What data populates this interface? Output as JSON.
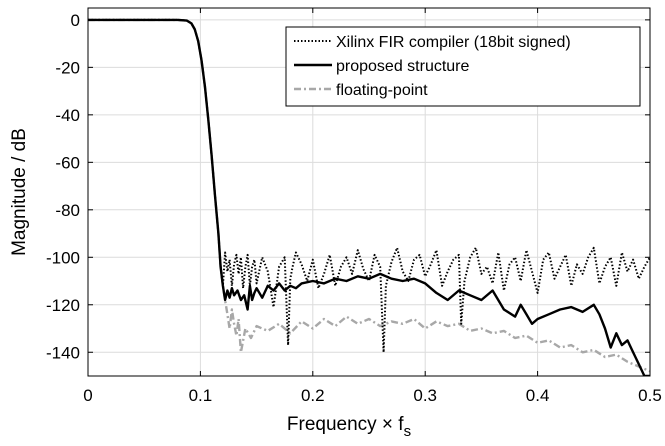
{
  "chart_data": {
    "type": "line",
    "xlabel": "Frequency × f",
    "xlabel_subscript": "s",
    "ylabel": "Magnitude / dB",
    "xlim": [
      0,
      0.5
    ],
    "ylim": [
      -150,
      5
    ],
    "xticks": [
      0,
      0.1,
      0.2,
      0.3,
      0.4,
      0.5
    ],
    "xtick_labels": [
      "0",
      "0.1",
      "0.2",
      "0.3",
      "0.4",
      "0.5"
    ],
    "yticks": [
      0,
      -20,
      -40,
      -60,
      -80,
      -100,
      -120,
      -140
    ],
    "ytick_labels": [
      "0",
      "-20",
      "-40",
      "-60",
      "-80",
      "-100",
      "-120",
      "-140"
    ],
    "grid": true,
    "legend_position": "top-right",
    "series": [
      {
        "name": "Xilinx FIR compiler (18bit signed)",
        "color": "#000000",
        "style": "dotted",
        "x": [
          0,
          0.02,
          0.05,
          0.08,
          0.088,
          0.092,
          0.095,
          0.098,
          0.101,
          0.104,
          0.107,
          0.11,
          0.113,
          0.116,
          0.118,
          0.12,
          0.122,
          0.124,
          0.126,
          0.128,
          0.13,
          0.132,
          0.134,
          0.136,
          0.138,
          0.14,
          0.142,
          0.144,
          0.146,
          0.148,
          0.15,
          0.155,
          0.16,
          0.165,
          0.17,
          0.175,
          0.178,
          0.18,
          0.182,
          0.185,
          0.19,
          0.195,
          0.2,
          0.205,
          0.21,
          0.215,
          0.22,
          0.225,
          0.23,
          0.235,
          0.24,
          0.245,
          0.25,
          0.255,
          0.26,
          0.263,
          0.265,
          0.27,
          0.275,
          0.28,
          0.285,
          0.29,
          0.295,
          0.3,
          0.305,
          0.31,
          0.315,
          0.32,
          0.325,
          0.33,
          0.332,
          0.335,
          0.34,
          0.345,
          0.35,
          0.355,
          0.36,
          0.365,
          0.37,
          0.375,
          0.38,
          0.385,
          0.39,
          0.395,
          0.4,
          0.405,
          0.41,
          0.415,
          0.42,
          0.425,
          0.43,
          0.435,
          0.44,
          0.445,
          0.45,
          0.455,
          0.46,
          0.465,
          0.47,
          0.475,
          0.48,
          0.485,
          0.49,
          0.495,
          0.5
        ],
        "y": [
          0,
          0,
          0,
          0,
          -0.3,
          -1.5,
          -4,
          -9,
          -17,
          -28,
          -42,
          -57,
          -74,
          -90,
          -104,
          -112,
          -98,
          -106,
          -101,
          -112,
          -103,
          -99,
          -107,
          -100,
          -113,
          -104,
          -99,
          -112,
          -104,
          -101,
          -111,
          -100,
          -106,
          -121,
          -104,
          -100,
          -137,
          -109,
          -104,
          -98,
          -103,
          -110,
          -101,
          -113,
          -107,
          -99,
          -112,
          -104,
          -100,
          -107,
          -97,
          -105,
          -110,
          -99,
          -104,
          -140,
          -112,
          -102,
          -96,
          -106,
          -110,
          -101,
          -99,
          -108,
          -103,
          -97,
          -112,
          -106,
          -101,
          -99,
          -128,
          -110,
          -100,
          -96,
          -107,
          -104,
          -111,
          -98,
          -114,
          -103,
          -100,
          -110,
          -97,
          -106,
          -115,
          -101,
          -98,
          -109,
          -104,
          -99,
          -112,
          -103,
          -107,
          -100,
          -96,
          -111,
          -104,
          -100,
          -112,
          -98,
          -106,
          -101,
          -109,
          -104,
          -100
        ]
      },
      {
        "name": "proposed structure",
        "color": "#000000",
        "style": "solid",
        "x": [
          0,
          0.02,
          0.05,
          0.08,
          0.088,
          0.092,
          0.095,
          0.098,
          0.101,
          0.104,
          0.107,
          0.11,
          0.113,
          0.116,
          0.118,
          0.12,
          0.122,
          0.124,
          0.126,
          0.128,
          0.13,
          0.133,
          0.136,
          0.139,
          0.142,
          0.144,
          0.146,
          0.148,
          0.15,
          0.155,
          0.16,
          0.165,
          0.17,
          0.175,
          0.18,
          0.185,
          0.19,
          0.2,
          0.21,
          0.22,
          0.23,
          0.24,
          0.25,
          0.26,
          0.27,
          0.28,
          0.29,
          0.3,
          0.31,
          0.32,
          0.33,
          0.34,
          0.35,
          0.36,
          0.37,
          0.38,
          0.385,
          0.39,
          0.395,
          0.4,
          0.41,
          0.42,
          0.43,
          0.44,
          0.45,
          0.455,
          0.46,
          0.465,
          0.47,
          0.475,
          0.48,
          0.485,
          0.49,
          0.495,
          0.5
        ],
        "y": [
          0,
          0,
          0,
          0,
          -0.3,
          -1.5,
          -4,
          -9,
          -17,
          -28,
          -42,
          -57,
          -74,
          -90,
          -104,
          -112,
          -118,
          -114,
          -117,
          -113,
          -116,
          -114,
          -118,
          -116,
          -122,
          -112,
          -118,
          -115,
          -113,
          -117,
          -112,
          -114,
          -111,
          -114,
          -112,
          -113,
          -111,
          -110,
          -111,
          -109,
          -110,
          -108,
          -109,
          -107,
          -109,
          -110,
          -109,
          -111,
          -115,
          -118,
          -114,
          -116,
          -118,
          -114,
          -122,
          -125,
          -120,
          -124,
          -128,
          -126,
          -124,
          -122,
          -121,
          -123,
          -120,
          -124,
          -130,
          -138,
          -132,
          -137,
          -135,
          -140,
          -145,
          -150,
          -150
        ]
      },
      {
        "name": "floating-point",
        "color": "#a8a8a8",
        "style": "dash-dot",
        "x": [
          0,
          0.02,
          0.05,
          0.08,
          0.088,
          0.092,
          0.095,
          0.098,
          0.101,
          0.104,
          0.107,
          0.11,
          0.113,
          0.116,
          0.118,
          0.12,
          0.122,
          0.124,
          0.126,
          0.128,
          0.13,
          0.132,
          0.134,
          0.136,
          0.14,
          0.145,
          0.15,
          0.16,
          0.17,
          0.18,
          0.19,
          0.2,
          0.21,
          0.22,
          0.23,
          0.24,
          0.25,
          0.26,
          0.27,
          0.28,
          0.29,
          0.3,
          0.31,
          0.32,
          0.33,
          0.34,
          0.35,
          0.36,
          0.37,
          0.38,
          0.39,
          0.4,
          0.41,
          0.42,
          0.43,
          0.44,
          0.45,
          0.46,
          0.47,
          0.48,
          0.49,
          0.5
        ],
        "y": [
          0,
          0,
          0,
          0,
          -0.3,
          -1.5,
          -4,
          -9,
          -17,
          -28,
          -42,
          -57,
          -74,
          -90,
          -104,
          -112,
          -118,
          -124,
          -130,
          -122,
          -128,
          -133,
          -126,
          -140,
          -130,
          -134,
          -129,
          -131,
          -128,
          -132,
          -127,
          -130,
          -126,
          -129,
          -125,
          -128,
          -126,
          -129,
          -127,
          -128,
          -126,
          -130,
          -127,
          -129,
          -128,
          -131,
          -130,
          -132,
          -131,
          -134,
          -133,
          -136,
          -135,
          -138,
          -137,
          -140,
          -139,
          -142,
          -141,
          -144,
          -146,
          -148
        ]
      }
    ]
  }
}
